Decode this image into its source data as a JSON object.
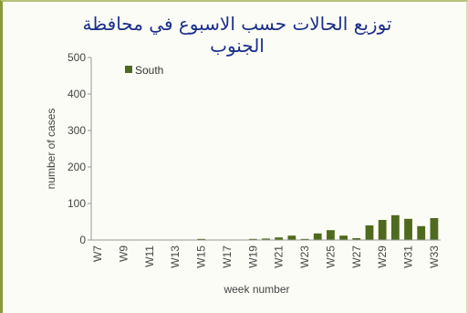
{
  "chart_data": {
    "type": "bar",
    "title": "توزيع الحالات حسب الاسبوع  في محافظة الجنوب",
    "xlabel": "week number",
    "ylabel": "number of cases",
    "ylim": [
      0,
      500
    ],
    "yticks": [
      0,
      100,
      200,
      300,
      400,
      500
    ],
    "legend_position": "top-left",
    "categories": [
      "W7",
      "W8",
      "W9",
      "W10",
      "W11",
      "W12",
      "W13",
      "W14",
      "W15",
      "W16",
      "W17",
      "W18",
      "W19",
      "W20",
      "W21",
      "W22",
      "W23",
      "W24",
      "W25",
      "W26",
      "W27",
      "W28",
      "W29",
      "W30",
      "W31",
      "W32",
      "W33"
    ],
    "xtick_labels": [
      "W7",
      "W9",
      "W11",
      "W13",
      "W15",
      "W17",
      "W19",
      "W21",
      "W23",
      "W25",
      "W27",
      "W29",
      "W31",
      "W33"
    ],
    "series": [
      {
        "name": "South",
        "color": "#4f6a1f",
        "values": [
          0,
          0,
          0,
          0,
          0,
          0,
          1,
          0,
          3,
          0,
          0,
          1,
          3,
          4,
          7,
          12,
          3,
          18,
          27,
          12,
          5,
          40,
          55,
          68,
          58,
          38,
          60
        ]
      }
    ]
  }
}
